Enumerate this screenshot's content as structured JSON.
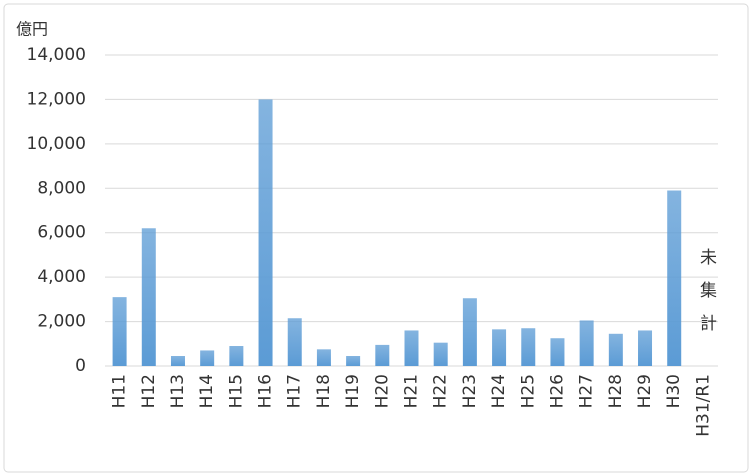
{
  "chart_data": {
    "type": "bar",
    "ylabel": "億円",
    "annotation": "未集計",
    "categories": [
      "H11",
      "H12",
      "H13",
      "H14",
      "H15",
      "H16",
      "H17",
      "H18",
      "H19",
      "H20",
      "H21",
      "H22",
      "H23",
      "H24",
      "H25",
      "H26",
      "H27",
      "H28",
      "H29",
      "H30",
      "H31/R1"
    ],
    "values": [
      3100,
      6200,
      450,
      700,
      900,
      12000,
      2150,
      750,
      450,
      950,
      1600,
      1050,
      3050,
      1650,
      1700,
      1250,
      2050,
      1450,
      1600,
      7900,
      null
    ],
    "color": "#5b9bd5",
    "ylim": [
      0,
      14000
    ],
    "yticks": [
      0,
      {
        "value": 2000,
        "label": "2,000"
      },
      {
        "value": 4000,
        "label": "4,000"
      },
      {
        "value": 6000,
        "label": "6,000"
      },
      {
        "value": 8000,
        "label": "8,000"
      },
      {
        "value": 10000,
        "label": "10,000"
      },
      {
        "value": 12000,
        "label": "12,000"
      },
      {
        "value": 14000,
        "label": "14,000"
      }
    ],
    "grid": true
  }
}
